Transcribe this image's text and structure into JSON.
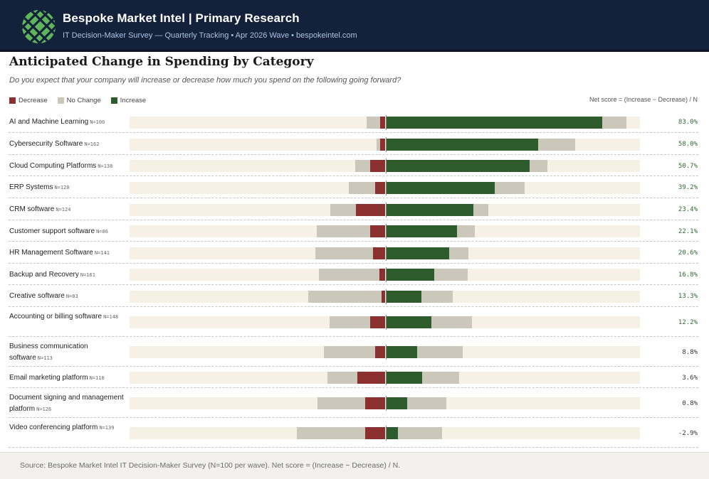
{
  "header": {
    "title": "Bespoke Market Intel  |  Primary Research",
    "subtitle": "IT Decision-Maker Survey — Quarterly Tracking  •  Apr 2026 Wave  •  bespokeintel.com",
    "logo_icon": "crosshatch-logo-icon"
  },
  "chart": {
    "title": "Anticipated Change in Spending by Category",
    "question": "Do you expect that your company will increase or decrease how much you spend on the following going forward?",
    "legend": {
      "decrease": "Decrease",
      "no_change": "No Change",
      "increase": "Increase"
    },
    "net_note": "Net score = (Increase − Decrease) / N"
  },
  "colors": {
    "decrease": "#8b2f2f",
    "no_change": "#cbc7ba",
    "increase": "#2e5b2c",
    "track": "#f6f1e4",
    "net_positive_strong": "#2e6b2e",
    "header_bg": "#14213a"
  },
  "chart_data": {
    "type": "bar",
    "subtype": "diverging-stacked-percent",
    "categories": [
      "AI and Machine Learning",
      "Cybersecurity Software",
      "Cloud Computing Platforms",
      "ERP Systems",
      "CRM software",
      "Customer support software",
      "HR Management Software",
      "Backup and Recovery",
      "Creative software",
      "Accounting or billing software",
      "Business communication software",
      "Email marketing platform",
      "Document signing and management platform",
      "Video conferencing platform"
    ],
    "n_labels": [
      "N=100",
      "N=162",
      "N=138",
      "N=120",
      "N=124",
      "N=86",
      "N=141",
      "N=161",
      "N=83",
      "N=148",
      "N=113",
      "N=110",
      "N=126",
      "N=139"
    ],
    "series": [
      {
        "name": "Decrease",
        "values": [
          2,
          2,
          6,
          4,
          11.5,
          6,
          5,
          2.5,
          1.5,
          6,
          4,
          11,
          8,
          8
        ]
      },
      {
        "name": "No Change",
        "values": [
          15,
          16,
          13,
          22,
          16,
          28,
          30,
          37,
          41,
          32,
          38,
          26,
          34,
          44
        ]
      },
      {
        "name": "Increase",
        "values": [
          85,
          60,
          56.5,
          43,
          34.5,
          28,
          25,
          19,
          14,
          18,
          12.5,
          14.5,
          8.5,
          5
        ]
      }
    ],
    "nochange_split_left": [
      0.36,
      0.1,
      0.45,
      0.47,
      0.63,
      0.75,
      0.75,
      0.64,
      0.7,
      0.5,
      0.53,
      0.45,
      0.55,
      0.61
    ],
    "net_score": [
      "83.0%",
      "58.0%",
      "50.7%",
      "39.2%",
      "23.4%",
      "22.1%",
      "20.6%",
      "16.8%",
      "13.3%",
      "12.2%",
      "8.8%",
      "3.6%",
      "0.8%",
      "-2.9%"
    ],
    "xlim": [
      -100,
      100
    ]
  },
  "footer": {
    "source": "Source: Bespoke Market Intel IT Decision-Maker Survey (N=100 per wave). Net score = (Increase − Decrease) / N."
  }
}
